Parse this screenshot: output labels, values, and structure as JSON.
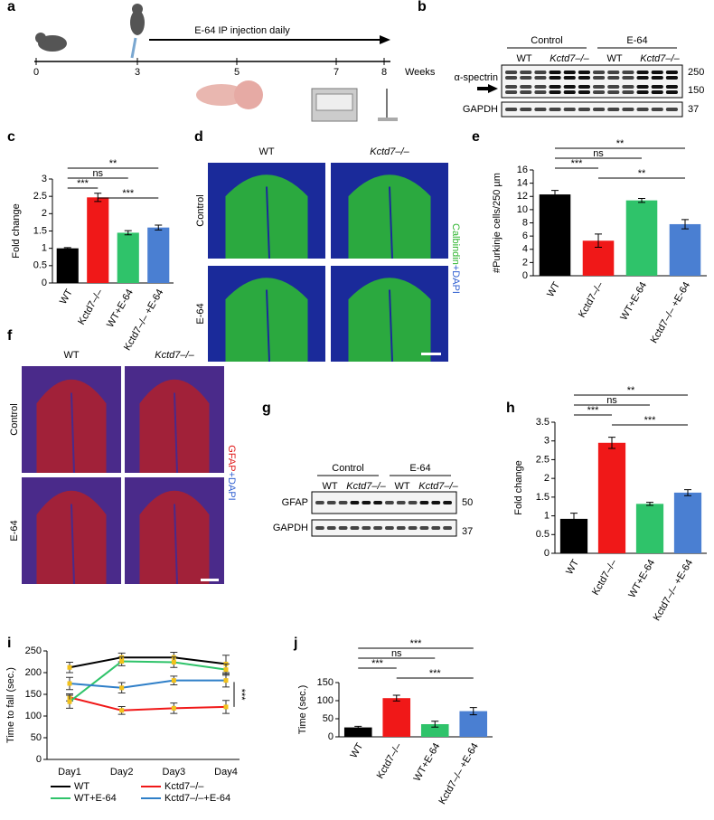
{
  "panel_labels": [
    "a",
    "b",
    "c",
    "d",
    "e",
    "f",
    "g",
    "h",
    "i",
    "j"
  ],
  "timeline": {
    "label": "E-64 IP injection daily",
    "ticks": [
      "0",
      "3",
      "5",
      "7",
      "8"
    ],
    "unit": "Weeks"
  },
  "blot_b": {
    "groups": [
      "Control",
      "E-64"
    ],
    "lanes": [
      "WT",
      "Kctd7–/–",
      "WT",
      "Kctd7–/–"
    ],
    "rows": [
      "α-spectrin",
      "GAPDH"
    ],
    "markers": [
      "250",
      "150",
      "37"
    ]
  },
  "images_d": {
    "columns": [
      "WT",
      "Kctd7–/–"
    ],
    "rows": [
      "Control",
      "E-64"
    ],
    "stain": [
      "Calbindin",
      "+DAPI"
    ]
  },
  "images_f": {
    "columns": [
      "WT",
      "Kctd7–/–"
    ],
    "rows": [
      "Control",
      "E-64"
    ],
    "stain": [
      "GFAP",
      "+DAPI"
    ]
  },
  "blot_g": {
    "groups": [
      "Control",
      "E-64"
    ],
    "lanes": [
      "WT",
      "Kctd7–/–",
      "WT",
      "Kctd7–/–"
    ],
    "rows": [
      "GFAP",
      "GAPDH"
    ],
    "markers": [
      "50",
      "37"
    ]
  },
  "chart_data": [
    {
      "type": "bar",
      "y_label": "Fold change",
      "categories": [
        "WT",
        "Kctd7–/–",
        "WT+E-64",
        "Kctd7–/– +E-64"
      ],
      "values": [
        1.0,
        2.47,
        1.45,
        1.6
      ],
      "errors": [
        0.02,
        0.12,
        0.06,
        0.07
      ],
      "colors": [
        "#000000",
        "#f01818",
        "#2fc36a",
        "#4a7fd2"
      ],
      "ylim": [
        0,
        3
      ],
      "yticks": [
        0,
        0.5,
        1,
        1.5,
        2,
        2.5,
        3
      ],
      "annotations": [
        {
          "from": 0,
          "to": 3,
          "label": "**"
        },
        {
          "from": 0,
          "to": 2,
          "label": "ns"
        },
        {
          "from": 0,
          "to": 1,
          "label": "***"
        },
        {
          "from": 1,
          "to": 3,
          "label": "***"
        }
      ]
    },
    {
      "type": "bar",
      "y_label": "#Purkinje cells/250 µm",
      "categories": [
        "WT",
        "Kctd7–/–",
        "WT+E-64",
        "Kctd7–/– +E-64"
      ],
      "values": [
        12.3,
        5.3,
        11.4,
        7.8
      ],
      "errors": [
        0.6,
        1.0,
        0.3,
        0.7
      ],
      "colors": [
        "#000000",
        "#f01818",
        "#2fc36a",
        "#4a7fd2"
      ],
      "ylim": [
        0,
        16
      ],
      "yticks": [
        0,
        2,
        4,
        6,
        8,
        10,
        12,
        14,
        16
      ],
      "annotations": [
        {
          "from": 0,
          "to": 3,
          "label": "**"
        },
        {
          "from": 0,
          "to": 2,
          "label": "ns"
        },
        {
          "from": 0,
          "to": 1,
          "label": "***"
        },
        {
          "from": 1,
          "to": 3,
          "label": "**"
        }
      ]
    },
    {
      "type": "bar",
      "y_label": "Fold change",
      "categories": [
        "WT",
        "Kctd7–/–",
        "WT+E-64",
        "Kctd7–/– +E-64"
      ],
      "values": [
        0.92,
        2.95,
        1.32,
        1.62
      ],
      "errors": [
        0.15,
        0.15,
        0.04,
        0.08
      ],
      "colors": [
        "#000000",
        "#f01818",
        "#2fc36a",
        "#4a7fd2"
      ],
      "ylim": [
        0,
        3.5
      ],
      "yticks": [
        0,
        0.5,
        1,
        1.5,
        2,
        2.5,
        3,
        3.5
      ],
      "annotations": [
        {
          "from": 0,
          "to": 3,
          "label": "**"
        },
        {
          "from": 0,
          "to": 2,
          "label": "ns"
        },
        {
          "from": 0,
          "to": 1,
          "label": "***"
        },
        {
          "from": 1,
          "to": 3,
          "label": "***"
        }
      ]
    },
    {
      "type": "line",
      "y_label": "Time to fall (sec.)",
      "categories": [
        "Day1",
        "Day2",
        "Day3",
        "Day4"
      ],
      "ylim": [
        0,
        250
      ],
      "yticks": [
        0,
        50,
        100,
        150,
        200,
        250
      ],
      "annotation": "***",
      "series": [
        {
          "name": "WT",
          "color": "#000000",
          "values": [
            212,
            235,
            235,
            220
          ],
          "errors": [
            12,
            10,
            12,
            20
          ]
        },
        {
          "name": "Kctd7–/–",
          "color": "#f01818",
          "values": [
            143,
            113,
            118,
            121
          ],
          "errors": [
            8,
            9,
            12,
            15
          ]
        },
        {
          "name": "WT+E-64",
          "color": "#2fc36a",
          "values": [
            133,
            226,
            224,
            207
          ],
          "errors": [
            15,
            10,
            12,
            13
          ]
        },
        {
          "name": "Kctd7–/–+E-64",
          "color": "#2f7fc8",
          "values": [
            175,
            165,
            182,
            182
          ],
          "errors": [
            14,
            12,
            10,
            15
          ]
        }
      ]
    },
    {
      "type": "bar",
      "y_label": "Time (sec.)",
      "categories": [
        "WT",
        "Kctd7–/–",
        "WT+E-64",
        "Kctd7–/– +E-64"
      ],
      "values": [
        26,
        107,
        35,
        71
      ],
      "errors": [
        3,
        8,
        8,
        10
      ],
      "colors": [
        "#000000",
        "#f01818",
        "#2fc36a",
        "#4a7fd2"
      ],
      "ylim": [
        0,
        150
      ],
      "yticks": [
        0,
        50,
        100,
        150
      ],
      "annotations": [
        {
          "from": 0,
          "to": 3,
          "label": "***"
        },
        {
          "from": 0,
          "to": 2,
          "label": "ns"
        },
        {
          "from": 0,
          "to": 1,
          "label": "***"
        },
        {
          "from": 1,
          "to": 3,
          "label": "***"
        }
      ]
    }
  ]
}
